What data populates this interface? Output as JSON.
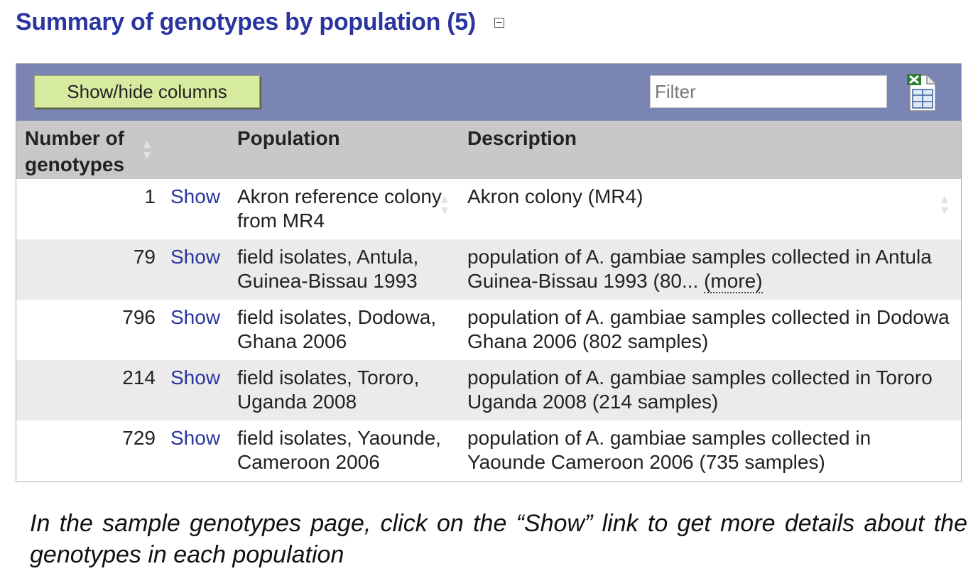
{
  "section": {
    "title": "Summary of genotypes by population (5)"
  },
  "toolbar": {
    "show_hide_label": "Show/hide columns",
    "filter_placeholder": "Filter",
    "filter_value": ""
  },
  "columns": {
    "number": "Number of genotypes",
    "population": "Population",
    "description": "Description"
  },
  "rows": [
    {
      "count": "1",
      "show": "Show",
      "population": "Akron reference colony from MR4",
      "description": "Akron colony (MR4)",
      "more": ""
    },
    {
      "count": "79",
      "show": "Show",
      "population": "field isolates, Antula, Guinea-Bissau 1993",
      "description": "population of A. gambiae samples collected in Antula Guinea-Bissau 1993 (80...",
      "more": "(more)"
    },
    {
      "count": "796",
      "show": "Show",
      "population": "field isolates, Dodowa, Ghana 2006",
      "description": "population of A. gambiae samples collected in Dodowa Ghana 2006 (802 samples)",
      "more": ""
    },
    {
      "count": "214",
      "show": "Show",
      "population": "field isolates, Tororo, Uganda 2008",
      "description": "population of A. gambiae samples collected in Tororo Uganda 2008 (214 samples)",
      "more": ""
    },
    {
      "count": "729",
      "show": "Show",
      "population": "field isolates, Yaounde, Cameroon 2006",
      "description": "population of A. gambiae samples collected in Yaounde Cameroon 2006 (735 samples)",
      "more": ""
    }
  ],
  "caption": "In the sample genotypes page, click on the “Show” link to get more details about the genotypes in each population",
  "icons": {
    "collapse": "collapse-icon",
    "export": "excel-export-icon",
    "sort": "sort-icon"
  },
  "colors": {
    "title": "#2a35a0",
    "toolbar": "#7b85b4",
    "header": "#c8c8c8",
    "button": "#d6eaa0",
    "link": "#2a35a0"
  }
}
